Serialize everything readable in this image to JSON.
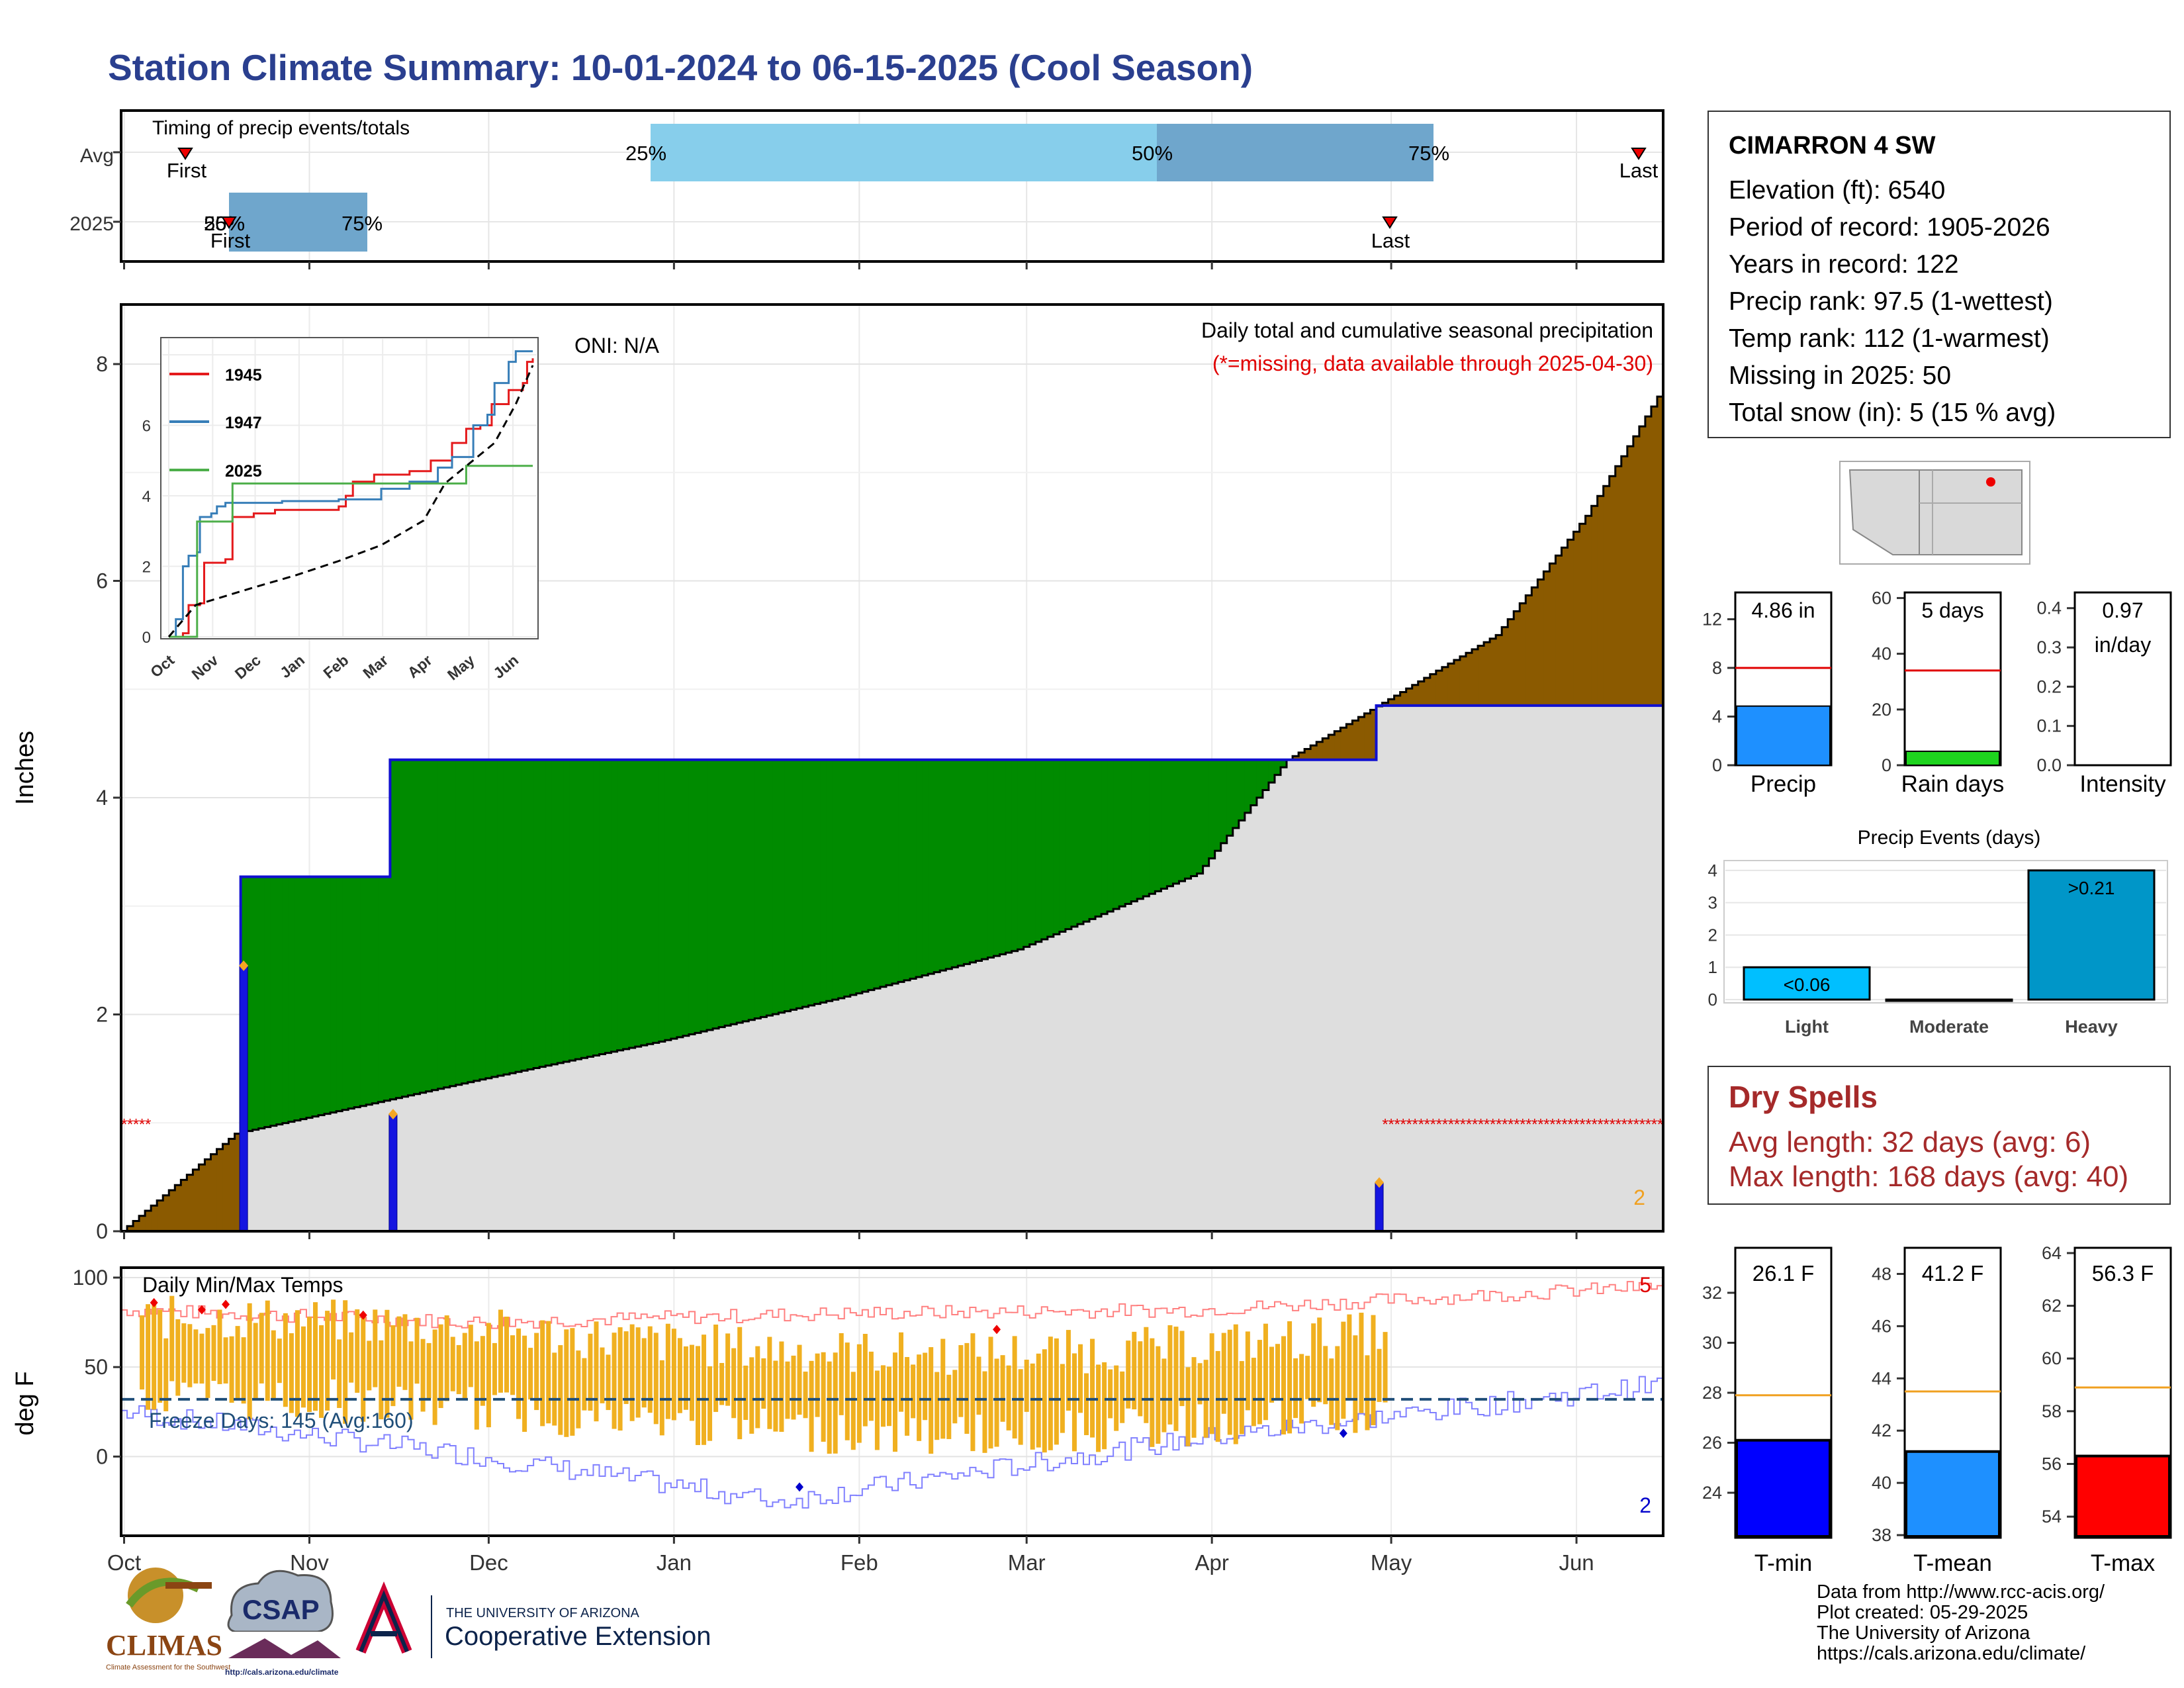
{
  "title": "Station Climate Summary: 10-01-2024 to 06-15-2025 (Cool Season)",
  "timing": {
    "label": "Timing of precip events/totals",
    "rows": [
      "Avg",
      "2025"
    ],
    "avg": {
      "p25": "25%",
      "p50": "50%",
      "p75": "75%",
      "first": "First",
      "last": "Last"
    },
    "y2025": {
      "p25": "25%",
      "p50": "50%",
      "p75": "75%",
      "first": "First",
      "last": "Last"
    }
  },
  "station": {
    "name": "CIMARRON 4 SW",
    "lines": [
      "Elevation (ft): 6540",
      "Period of record: 1905-2026",
      "Years in record: 122",
      "Precip rank: 97.5 (1-wettest)",
      "Temp rank: 112 (1-warmest)",
      "Missing in 2025: 50",
      "Total snow (in): 5 (15 % avg)"
    ]
  },
  "main": {
    "ylabel": "Inches",
    "oni": "ONI: N/A",
    "note1": "Daily total and cumulative seasonal precipitation",
    "note2": "(*=missing, data available through 2025-04-30)",
    "corner_count": "2",
    "inset_legend": [
      "1945",
      "1947",
      "2025"
    ]
  },
  "temp": {
    "label": "Daily Min/Max Temps",
    "ylabel": "deg F",
    "freeze": "Freeze Days: 145 (Avg:160)",
    "count_top": "5",
    "count_bottom": "2"
  },
  "months": [
    "Oct",
    "Nov",
    "Dec",
    "Jan",
    "Feb",
    "Mar",
    "Apr",
    "May",
    "Jun"
  ],
  "inset_months": [
    "Oct",
    "Nov",
    "Dec",
    "Jan",
    "Feb",
    "Mar",
    "Apr",
    "May",
    "Jun"
  ],
  "summary_bars": {
    "precip": {
      "label": "Precip",
      "value_text": "4.86 in",
      "value": 4.86,
      "avg": 8
    },
    "raindays": {
      "label": "Rain days",
      "value_text": "5 days",
      "value": 5,
      "avg": 34
    },
    "intensity": {
      "label": "Intensity",
      "value_text_1": "0.97",
      "value_text_2": "in/day",
      "value": 0.97
    }
  },
  "events": {
    "title": "Precip Events (days)",
    "categories": [
      "Light",
      "Moderate",
      "Heavy"
    ],
    "values": [
      1,
      0,
      4
    ],
    "labels": [
      "<0.06",
      "",
      ">0.21"
    ]
  },
  "dry": {
    "title": "Dry Spells",
    "avg": "Avg length: 32 days (avg: 6)",
    "max": "Max length: 168 days (avg: 40)"
  },
  "temp_bars": {
    "tmin": {
      "label": "T-min",
      "value_text": "26.1 F",
      "value": 26.1,
      "avg": 27.9
    },
    "tmean": {
      "label": "T-mean",
      "value_text": "41.2 F",
      "value": 41.2,
      "avg": 43.5
    },
    "tmax": {
      "label": "T-max",
      "value_text": "56.3 F",
      "value": 56.3,
      "avg": 58.9
    }
  },
  "footer": {
    "lines": [
      "Data from http://www.rcc-acis.org/",
      "Plot created: 05-29-2025",
      "The University of Arizona",
      "https://cals.arizona.edu/climate/"
    ]
  },
  "logos": {
    "climas": "CLIMAS",
    "climas_sub": "Climate Assessment for the Southwest",
    "csap": "CSAP",
    "csap_url": "http://cals.arizona.edu/climate",
    "ua_small": "THE UNIVERSITY OF ARIZONA",
    "ua_big": "Cooperative Extension"
  },
  "chart_data": [
    {
      "type": "area",
      "title": "Daily total and cumulative seasonal precipitation",
      "ylabel": "Inches",
      "ylim": [
        0,
        8.5
      ],
      "x_range": [
        "2024-10-01",
        "2025-06-15"
      ],
      "series": [
        {
          "name": "1945",
          "cum_precip": [
            [
              0,
              0
            ],
            [
              19,
              0.9
            ],
            [
              60,
              1.4
            ],
            [
              90,
              1.75
            ],
            [
              120,
              2.15
            ],
            [
              150,
              2.6
            ],
            [
              180,
              3.3
            ],
            [
              195,
              4.35
            ],
            [
              230,
              5.5
            ],
            [
              245,
              6.6
            ],
            [
              257,
              7.7
            ]
          ]
        },
        {
          "name": "2025",
          "cum_precip": [
            [
              0,
              0
            ],
            [
              20,
              0
            ],
            [
              20,
              3.27
            ],
            [
              45,
              3.27
            ],
            [
              45,
              4.35
            ],
            [
              210,
              4.35
            ],
            [
              210,
              4.85
            ],
            [
              257,
              4.85
            ]
          ]
        }
      ],
      "daily_precip": [
        [
          20,
          2.45
        ],
        [
          45,
          1.08
        ],
        [
          210,
          0.45
        ]
      ],
      "missing_days": [
        [
          0,
          4
        ],
        [
          211,
          257
        ]
      ]
    },
    {
      "type": "line",
      "title": "Daily Min/Max Temps",
      "ylabel": "deg F",
      "ylim": [
        -35,
        100
      ],
      "freeze_line": 32,
      "avg_max_approx": [
        [
          0,
          82
        ],
        [
          60,
          75
        ],
        [
          120,
          80
        ],
        [
          180,
          82
        ],
        [
          257,
          95
        ]
      ],
      "avg_min_approx": [
        [
          0,
          25
        ],
        [
          60,
          0
        ],
        [
          110,
          -25
        ],
        [
          180,
          10
        ],
        [
          257,
          40
        ]
      ]
    },
    {
      "type": "bar",
      "title": "Precip Events (days)",
      "categories": [
        "Light",
        "Moderate",
        "Heavy"
      ],
      "values": [
        1,
        0,
        4
      ],
      "ylim": [
        0,
        4
      ]
    }
  ]
}
